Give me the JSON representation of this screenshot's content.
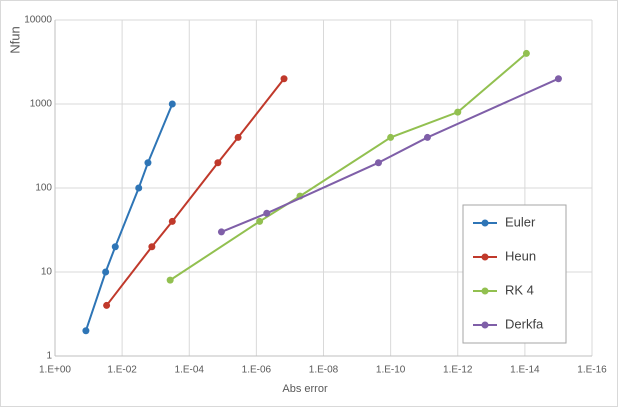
{
  "chart_data": {
    "type": "line",
    "x_label": "Abs error",
    "y_label": "Nfun",
    "x_log": true,
    "y_log": true,
    "grid": true,
    "legend_position": "lower-right",
    "xlim": [
      1,
      1e-16
    ],
    "xticks": [
      {
        "value": 1,
        "label": "1.E+00"
      },
      {
        "value": 0.01,
        "label": "1.E-02"
      },
      {
        "value": 0.0001,
        "label": "1.E-04"
      },
      {
        "value": 1e-06,
        "label": "1.E-06"
      },
      {
        "value": 1e-08,
        "label": "1.E-08"
      },
      {
        "value": 1e-10,
        "label": "1.E-10"
      },
      {
        "value": 1e-12,
        "label": "1.E-12"
      },
      {
        "value": 1e-14,
        "label": "1.E-14"
      },
      {
        "value": 1e-16,
        "label": "1.E-16"
      }
    ],
    "ylim": [
      1,
      10000
    ],
    "yticks": [
      1,
      10,
      100,
      1000,
      10000
    ],
    "series": [
      {
        "name": "Euler",
        "color": "#2e75b6",
        "x": [
          0.12,
          0.031,
          0.016,
          0.0032,
          0.0017,
          0.00032
        ],
        "values": [
          2,
          10,
          20,
          100,
          200,
          1000
        ]
      },
      {
        "name": "Heun",
        "color": "#c0392b",
        "x": [
          0.029,
          0.0013,
          0.00032,
          1.4e-05,
          3.5e-06,
          1.5e-07
        ],
        "values": [
          4,
          20,
          40,
          200,
          400,
          2000
        ]
      },
      {
        "name": "RK 4",
        "color": "#92c050",
        "x": [
          0.00037,
          8e-07,
          5e-08,
          1e-10,
          1e-12,
          9e-15
        ],
        "values": [
          8,
          40,
          80,
          400,
          800,
          4000
        ]
      },
      {
        "name": "Derkfa",
        "color": "#7f5fa8",
        "x": [
          1.1e-05,
          4.9e-07,
          2.3e-10,
          8e-12,
          1e-15
        ],
        "values": [
          30,
          50,
          200,
          400,
          2000
        ]
      }
    ]
  }
}
